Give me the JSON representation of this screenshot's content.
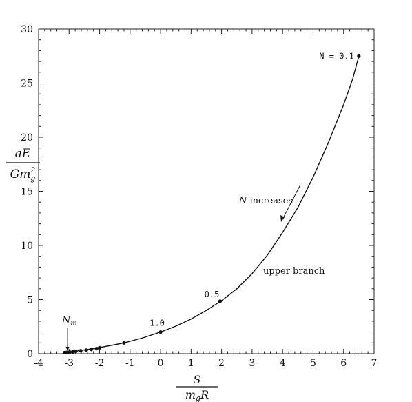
{
  "chart_data": {
    "type": "line",
    "title": "",
    "xlabel": {
      "numerator": "S",
      "denominator_m": "m",
      "denominator_sub": "g",
      "denominator_r": "R"
    },
    "ylabel": {
      "numerator": "aE",
      "denominator_g": "G",
      "denominator_m": "m",
      "denominator_sub": "g",
      "denominator_sup": "2"
    },
    "xlim": [
      -4,
      7
    ],
    "ylim": [
      0,
      30
    ],
    "xticks": [
      -4,
      -3,
      -2,
      -1,
      0,
      1,
      2,
      3,
      4,
      5,
      6,
      7
    ],
    "yticks": [
      0,
      5,
      10,
      15,
      20,
      25,
      30
    ],
    "grid": false,
    "curve": {
      "x": [
        -3.15,
        -3.05,
        -2.9,
        -2.7,
        -2.5,
        -2.2,
        -2.0,
        -1.6,
        -1.2,
        -0.6,
        0,
        0.5,
        1.0,
        1.5,
        2.0,
        2.5,
        3.0,
        3.5,
        4.0,
        4.5,
        5.0,
        5.5,
        6.0,
        6.3,
        6.5
      ],
      "y": [
        0.1,
        0.15,
        0.2,
        0.27,
        0.35,
        0.48,
        0.57,
        0.78,
        1.0,
        1.45,
        2.0,
        2.55,
        3.2,
        4.0,
        4.9,
        6.0,
        7.4,
        9.1,
        11.2,
        13.5,
        16.3,
        19.5,
        23.0,
        25.4,
        27.5
      ]
    },
    "markers": {
      "x": [
        -3.15,
        -3.1,
        -3.05,
        -2.98,
        -2.88,
        -2.78,
        -2.62,
        -2.44,
        -2.27,
        -2.1,
        -2.0,
        -1.2,
        0,
        1.95,
        6.5
      ],
      "y": [
        0.1,
        0.11,
        0.13,
        0.15,
        0.18,
        0.21,
        0.27,
        0.33,
        0.4,
        0.47,
        0.55,
        1.0,
        2.0,
        4.85,
        27.5
      ]
    },
    "annotations": {
      "n01": {
        "text": "N = 0.1",
        "x": 6.5,
        "y": 27.5
      },
      "n05": {
        "text": "0.5",
        "x": 1.95,
        "y": 4.85
      },
      "n10": {
        "text": "1.0",
        "x": 0,
        "y": 2.0
      },
      "nm": {
        "symbol": "N",
        "sub": "m",
        "x": -3.05,
        "y": 0.13
      },
      "increases": {
        "symbol": "N",
        "text": " increases"
      },
      "upper": {
        "text": "upper branch"
      }
    }
  }
}
